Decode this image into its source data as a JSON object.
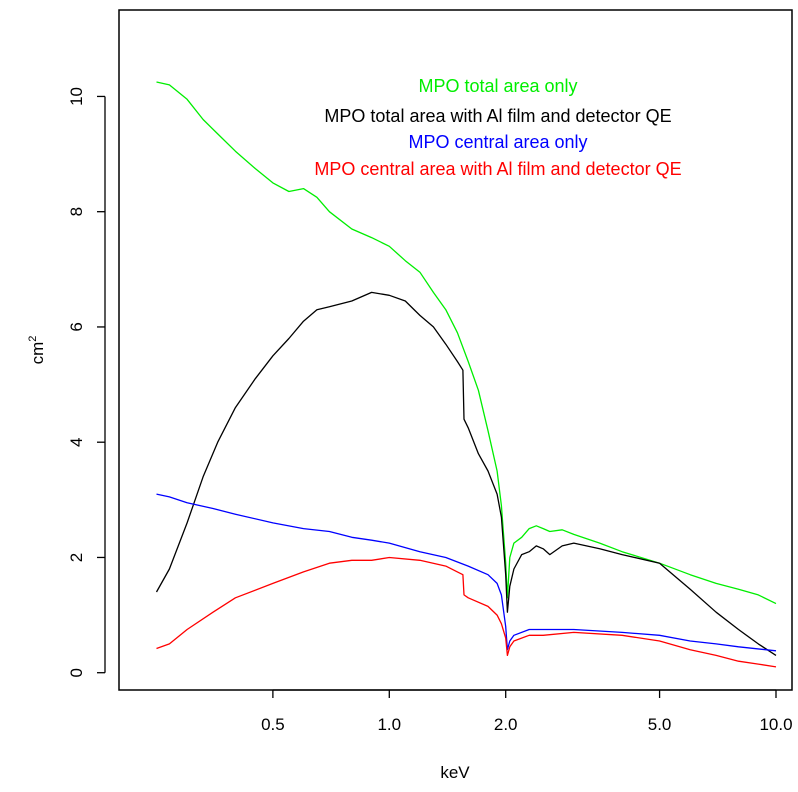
{
  "chart_data": {
    "type": "line",
    "title": "",
    "xlabel": "keV",
    "ylabel": "cm",
    "ylabel_superscript": "2",
    "xscale": "log",
    "xlim": [
      0.2,
      11
    ],
    "ylim": [
      -0.3,
      11.5
    ],
    "xticks": [
      {
        "value": 0.5,
        "label": "0.5"
      },
      {
        "value": 1.0,
        "label": "1.0"
      },
      {
        "value": 2.0,
        "label": "2.0"
      },
      {
        "value": 5.0,
        "label": "5.0"
      },
      {
        "value": 10.0,
        "label": "10.0"
      }
    ],
    "yticks": [
      {
        "value": 0,
        "label": "0"
      },
      {
        "value": 2,
        "label": "2"
      },
      {
        "value": 4,
        "label": "4"
      },
      {
        "value": 6,
        "label": "6"
      },
      {
        "value": 8,
        "label": "8"
      },
      {
        "value": 10,
        "label": "10"
      }
    ],
    "grid": false,
    "legend_position": "top-right",
    "series": [
      {
        "name": "MPO total area only",
        "color": "#00ee00",
        "x": [
          0.25,
          0.27,
          0.3,
          0.33,
          0.36,
          0.4,
          0.45,
          0.5,
          0.55,
          0.6,
          0.65,
          0.7,
          0.8,
          0.9,
          1.0,
          1.1,
          1.2,
          1.3,
          1.4,
          1.5,
          1.6,
          1.7,
          1.8,
          1.9,
          1.95,
          2.0,
          2.02,
          2.05,
          2.1,
          2.2,
          2.3,
          2.4,
          2.5,
          2.6,
          2.8,
          3.0,
          3.5,
          4.0,
          5.0,
          6.0,
          7.0,
          8.0,
          9.0,
          10.0
        ],
        "y": [
          10.25,
          10.2,
          9.95,
          9.6,
          9.35,
          9.05,
          8.75,
          8.5,
          8.35,
          8.4,
          8.25,
          8.0,
          7.7,
          7.55,
          7.4,
          7.15,
          6.95,
          6.6,
          6.3,
          5.9,
          5.4,
          4.9,
          4.2,
          3.5,
          2.9,
          1.9,
          1.3,
          2.0,
          2.25,
          2.35,
          2.5,
          2.55,
          2.5,
          2.45,
          2.48,
          2.4,
          2.25,
          2.1,
          1.9,
          1.7,
          1.55,
          1.45,
          1.35,
          1.2
        ]
      },
      {
        "name": "MPO total area with Al film and detector QE",
        "color": "#000000",
        "x": [
          0.25,
          0.27,
          0.3,
          0.33,
          0.36,
          0.4,
          0.45,
          0.5,
          0.55,
          0.6,
          0.65,
          0.7,
          0.8,
          0.9,
          1.0,
          1.1,
          1.2,
          1.3,
          1.4,
          1.5,
          1.55,
          1.56,
          1.6,
          1.7,
          1.8,
          1.9,
          1.95,
          2.0,
          2.02,
          2.05,
          2.1,
          2.2,
          2.3,
          2.4,
          2.5,
          2.6,
          2.8,
          3.0,
          3.5,
          4.0,
          5.0,
          6.0,
          7.0,
          8.0,
          9.0,
          10.0
        ],
        "y": [
          1.4,
          1.8,
          2.6,
          3.4,
          4.0,
          4.6,
          5.1,
          5.5,
          5.8,
          6.1,
          6.3,
          6.35,
          6.45,
          6.6,
          6.55,
          6.45,
          6.2,
          6.0,
          5.7,
          5.4,
          5.25,
          4.4,
          4.25,
          3.8,
          3.5,
          3.1,
          2.7,
          1.7,
          1.05,
          1.5,
          1.8,
          2.05,
          2.1,
          2.2,
          2.15,
          2.05,
          2.2,
          2.25,
          2.15,
          2.05,
          1.9,
          1.45,
          1.05,
          0.75,
          0.5,
          0.3
        ]
      },
      {
        "name": "MPO central area only",
        "color": "#0000ff",
        "x": [
          0.25,
          0.27,
          0.3,
          0.35,
          0.4,
          0.5,
          0.6,
          0.7,
          0.8,
          0.9,
          1.0,
          1.2,
          1.4,
          1.6,
          1.8,
          1.9,
          1.95,
          2.0,
          2.02,
          2.05,
          2.1,
          2.3,
          2.5,
          3.0,
          4.0,
          5.0,
          6.0,
          7.0,
          8.0,
          10.0
        ],
        "y": [
          3.1,
          3.05,
          2.95,
          2.85,
          2.75,
          2.6,
          2.5,
          2.45,
          2.35,
          2.3,
          2.25,
          2.1,
          2.0,
          1.85,
          1.7,
          1.55,
          1.35,
          0.8,
          0.4,
          0.55,
          0.65,
          0.75,
          0.75,
          0.75,
          0.7,
          0.65,
          0.55,
          0.5,
          0.45,
          0.38
        ]
      },
      {
        "name": "MPO central area with Al film and detector QE",
        "color": "#ff0000",
        "x": [
          0.25,
          0.27,
          0.3,
          0.35,
          0.4,
          0.5,
          0.6,
          0.7,
          0.8,
          0.9,
          1.0,
          1.2,
          1.4,
          1.5,
          1.55,
          1.56,
          1.6,
          1.8,
          1.9,
          1.95,
          2.0,
          2.02,
          2.05,
          2.1,
          2.3,
          2.5,
          3.0,
          4.0,
          5.0,
          6.0,
          7.0,
          8.0,
          9.0,
          10.0
        ],
        "y": [
          0.42,
          0.5,
          0.75,
          1.05,
          1.3,
          1.55,
          1.75,
          1.9,
          1.95,
          1.95,
          2.0,
          1.95,
          1.85,
          1.75,
          1.7,
          1.35,
          1.3,
          1.15,
          1.0,
          0.85,
          0.6,
          0.3,
          0.45,
          0.55,
          0.65,
          0.65,
          0.7,
          0.65,
          0.55,
          0.4,
          0.3,
          0.2,
          0.15,
          0.1
        ]
      }
    ]
  }
}
